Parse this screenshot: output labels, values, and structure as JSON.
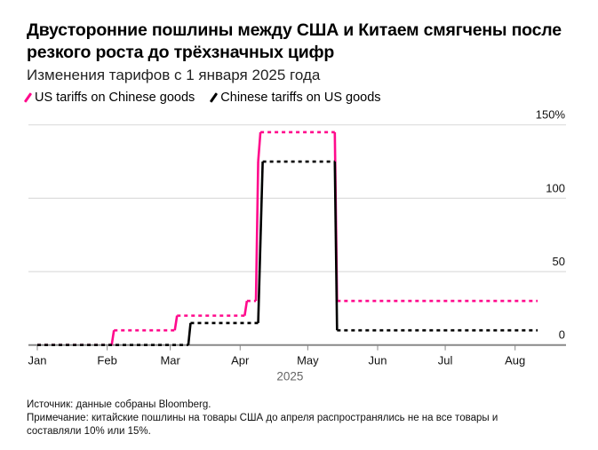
{
  "title": "Двусторонние пошлины между США и Китаем смягчены после резкого роста до трёхзначных цифр",
  "subtitle": "Изменения тарифов с 1 января 2025 года",
  "source": "Источник: данные собраны Bloomberg.",
  "note": "Примечание: китайские пошлины на товары США до апреля распространялись не на все товары и составляли 10% или 15%.",
  "chart_data": {
    "type": "line",
    "title": "Двусторонние пошлины между США и Китаем смягчены после резкого роста до трёхзначных цифр",
    "xlabel": "2025",
    "ylabel": "",
    "ylim": [
      0,
      150
    ],
    "xlim": [
      "2025-01-01",
      "2025-08-31"
    ],
    "y_ticks": [
      "0",
      "50",
      "100",
      "150%"
    ],
    "y_tick_values": [
      0,
      50,
      100,
      150
    ],
    "x_ticks": [
      "Jan",
      "Feb",
      "Mar",
      "Apr",
      "May",
      "Jun",
      "Jul",
      "Aug"
    ],
    "x_tick_dates": [
      "2025-01-01",
      "2025-02-01",
      "2025-03-01",
      "2025-04-01",
      "2025-05-01",
      "2025-06-01",
      "2025-07-01",
      "2025-08-01"
    ],
    "grid": true,
    "legend_position": "top-left",
    "series": [
      {
        "name": "US tariffs on Chinese goods",
        "color": "#ff0a8c",
        "points": [
          [
            "2025-01-01",
            0
          ],
          [
            "2025-02-03",
            0
          ],
          [
            "2025-02-04",
            10
          ],
          [
            "2025-03-03",
            10
          ],
          [
            "2025-03-04",
            20
          ],
          [
            "2025-04-03",
            20
          ],
          [
            "2025-04-04",
            30
          ],
          [
            "2025-04-08",
            30
          ],
          [
            "2025-04-09",
            125
          ],
          [
            "2025-04-10",
            145
          ],
          [
            "2025-05-13",
            145
          ],
          [
            "2025-05-14",
            30
          ],
          [
            "2025-08-11",
            30
          ]
        ]
      },
      {
        "name": "Chinese tariffs on US goods",
        "color": "#000000",
        "points": [
          [
            "2025-01-01",
            0
          ],
          [
            "2025-03-09",
            0
          ],
          [
            "2025-03-10",
            15
          ],
          [
            "2025-04-09",
            15
          ],
          [
            "2025-04-11",
            125
          ],
          [
            "2025-05-13",
            125
          ],
          [
            "2025-05-14",
            10
          ],
          [
            "2025-08-11",
            10
          ]
        ]
      }
    ]
  }
}
